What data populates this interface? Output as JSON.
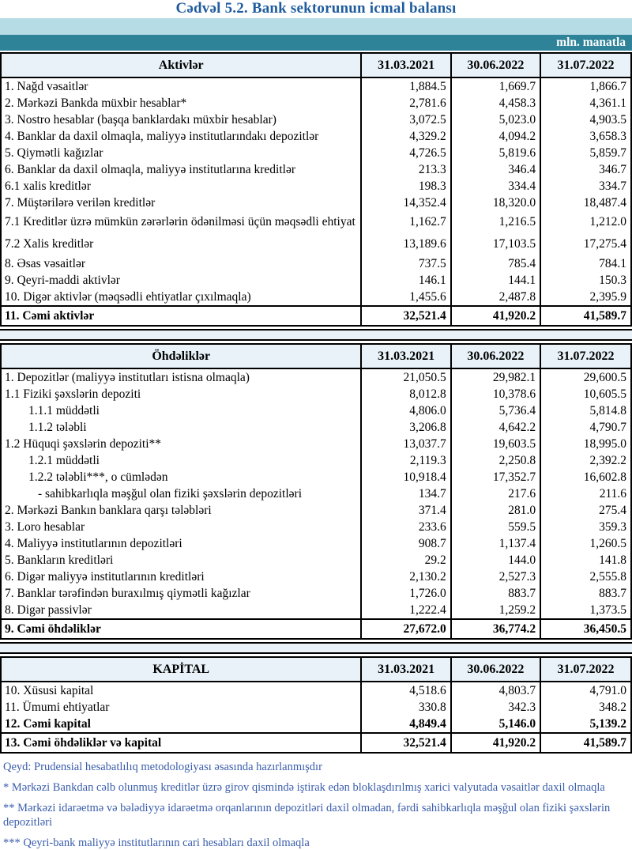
{
  "title": "Cədvəl 5.2. Bank sektorunun icmal balansı",
  "unit_label": "mln. manatla",
  "columns": [
    "31.03.2021",
    "30.06.2022",
    "31.07.2022"
  ],
  "sections": [
    {
      "header": "Aktivlər",
      "rows": [
        {
          "label": "1. Nağd vəsaitlər",
          "values": [
            "1,884.5",
            "1,669.7",
            "1,866.7"
          ]
        },
        {
          "label": "2. Mərkəzi Bankda müxbir hesablar*",
          "values": [
            "2,781.6",
            "4,458.3",
            "4,361.1"
          ]
        },
        {
          "label": "3. Nostro hesablar (başqa banklardakı müxbir hesablar)",
          "values": [
            "3,072.5",
            "5,023.0",
            "4,903.5"
          ]
        },
        {
          "label": "4. Banklar da daxil olmaqla, maliyyə institutlarındakı depozitlər",
          "values": [
            "4,329.2",
            "4,094.2",
            "3,658.3"
          ]
        },
        {
          "label": "5. Qiymətli kağızlar",
          "values": [
            "4,726.5",
            "5,819.6",
            "5,859.7"
          ]
        },
        {
          "label": "6. Banklar da daxil olmaqla, maliyyə institutlarına kreditlər",
          "values": [
            "213.3",
            "346.4",
            "346.7"
          ]
        },
        {
          "label": "6.1 xalis kreditlər",
          "values": [
            "198.3",
            "334.4",
            "334.7"
          ]
        },
        {
          "label": "7. Müştərilərə verilən kreditlər",
          "values": [
            "14,352.4",
            "18,320.0",
            "18,487.4"
          ]
        },
        {
          "label": "7.1 Kreditlər üzrə mümkün zərərlərin ödənilməsi üçün məqsədli ehtiyat",
          "values": [
            "1,162.7",
            "1,216.5",
            "1,212.0"
          ],
          "tall": true
        },
        {
          "label": "7.2 Xalis kreditlər",
          "values": [
            "13,189.6",
            "17,103.5",
            "17,275.4"
          ],
          "tall": true
        },
        {
          "label": "8.  Əsas vəsaitlər",
          "values": [
            "737.5",
            "785.4",
            "784.1"
          ]
        },
        {
          "label": "9. Qeyri-maddi aktivlər",
          "values": [
            "146.1",
            "144.1",
            "150.3"
          ]
        },
        {
          "label": "10. Digər aktivlər (məqsədli ehtiyatlar çıxılmaqla)",
          "values": [
            "1,455.6",
            "2,487.8",
            "2,395.9"
          ]
        },
        {
          "label": "11. Cəmi aktivlər",
          "values": [
            "32,521.4",
            "41,920.2",
            "41,589.7"
          ],
          "bold": true,
          "rule": true,
          "total": true
        }
      ]
    },
    {
      "header": "Öhdəliklər",
      "rows": [
        {
          "label": "1. Depozitlər (maliyyə institutları istisna olmaqla)",
          "values": [
            "21,050.5",
            "29,982.1",
            "29,600.5"
          ]
        },
        {
          "label": "1.1 Fiziki şəxslərin depoziti",
          "values": [
            "8,012.8",
            "10,378.6",
            "10,605.5"
          ]
        },
        {
          "label": "1.1.1 müddətli",
          "values": [
            "4,806.0",
            "5,736.4",
            "5,814.8"
          ],
          "indent": 1
        },
        {
          "label": "1.1.2 tələbli",
          "values": [
            "3,206.8",
            "4,642.2",
            "4,790.7"
          ],
          "indent": 1
        },
        {
          "label": "1.2 Hüquqi şəxslərin depoziti**",
          "values": [
            "13,037.7",
            "19,603.5",
            "18,995.0"
          ]
        },
        {
          "label": "1.2.1 müddətli",
          "values": [
            "2,119.3",
            "2,250.8",
            "2,392.2"
          ],
          "indent": 1
        },
        {
          "label": "1.2.2 tələbli***, o cümlədən",
          "values": [
            "10,918.4",
            "17,352.7",
            "16,602.8"
          ],
          "indent": 1
        },
        {
          "label": "- sahibkarlıqla məşğul olan fiziki şəxslərin depozitləri",
          "values": [
            "134.7",
            "217.6",
            "211.6"
          ],
          "indent": 2
        },
        {
          "label": "2. Mərkəzi Bankın banklara qarşı tələbləri",
          "values": [
            "371.4",
            "281.0",
            "275.4"
          ]
        },
        {
          "label": "3. Loro hesablar",
          "values": [
            "233.6",
            "559.5",
            "359.3"
          ]
        },
        {
          "label": "4. Maliyyə institutlarının  depozitləri",
          "values": [
            "908.7",
            "1,137.4",
            "1,260.5"
          ]
        },
        {
          "label": "5. Bankların kreditləri",
          "values": [
            "29.2",
            "144.0",
            "141.8"
          ]
        },
        {
          "label": "6. Digər maliyyə institutlarının kreditləri",
          "values": [
            "2,130.2",
            "2,527.3",
            "2,555.8"
          ]
        },
        {
          "label": "7. Banklar tərəfindən buraxılmış qiymətli kağızlar",
          "values": [
            "1,726.0",
            "883.7",
            "883.7"
          ]
        },
        {
          "label": "8. Digər passivlər",
          "values": [
            "1,222.4",
            "1,259.2",
            "1,373.5"
          ]
        },
        {
          "label": "9. Cəmi öhdəliklər",
          "values": [
            "27,672.0",
            "36,774.2",
            "36,450.5"
          ],
          "bold": true,
          "rule": true,
          "total": true
        }
      ]
    },
    {
      "header": "KAPİTAL",
      "rows": [
        {
          "label": "10. Xüsusi kapital",
          "values": [
            "4,518.6",
            "4,803.7",
            "4,791.0"
          ]
        },
        {
          "label": "11. Ümumi ehtiyatlar",
          "values": [
            "330.8",
            "342.3",
            "348.2"
          ]
        },
        {
          "label": "12. Cəmi kapital",
          "values": [
            "4,849.4",
            "5,146.0",
            "5,139.2"
          ],
          "bold": true
        },
        {
          "label": "13. Cəmi öhdəliklər və kapital",
          "values": [
            "32,521.4",
            "41,920.2",
            "41,589.7"
          ],
          "bold": true,
          "rule": true,
          "total": true
        }
      ]
    }
  ],
  "footnotes": [
    "Qeyd: Prudensial hesabatlılıq metodologiyası əsasında hazırlanmışdır",
    "* Mərkəzi Bankdan cəlb olunmuş kreditlər üzrə girov qismində iştirak edən bloklaşdırılmış xarici valyutada vəsaitlər daxil olmaqla",
    "** Mərkəzi idarəetmə və bələdiyyə idarəetmə orqanlarının depozitləri daxil olmadan, fərdi sahibkarlıqla məşğul olan fiziki şəxslərin depozitləri",
    "*** Qeyri-bank maliyyə institutlarının cari hesabları daxil olmaqla"
  ],
  "colors": {
    "title_blue": "#1f5c9e",
    "band_light_blue": "#b6dce6",
    "band_teal": "#2e8399",
    "header_row_bg": "#e8f2f8",
    "footnote_blue": "#3a5dab",
    "border_black": "#000000"
  }
}
